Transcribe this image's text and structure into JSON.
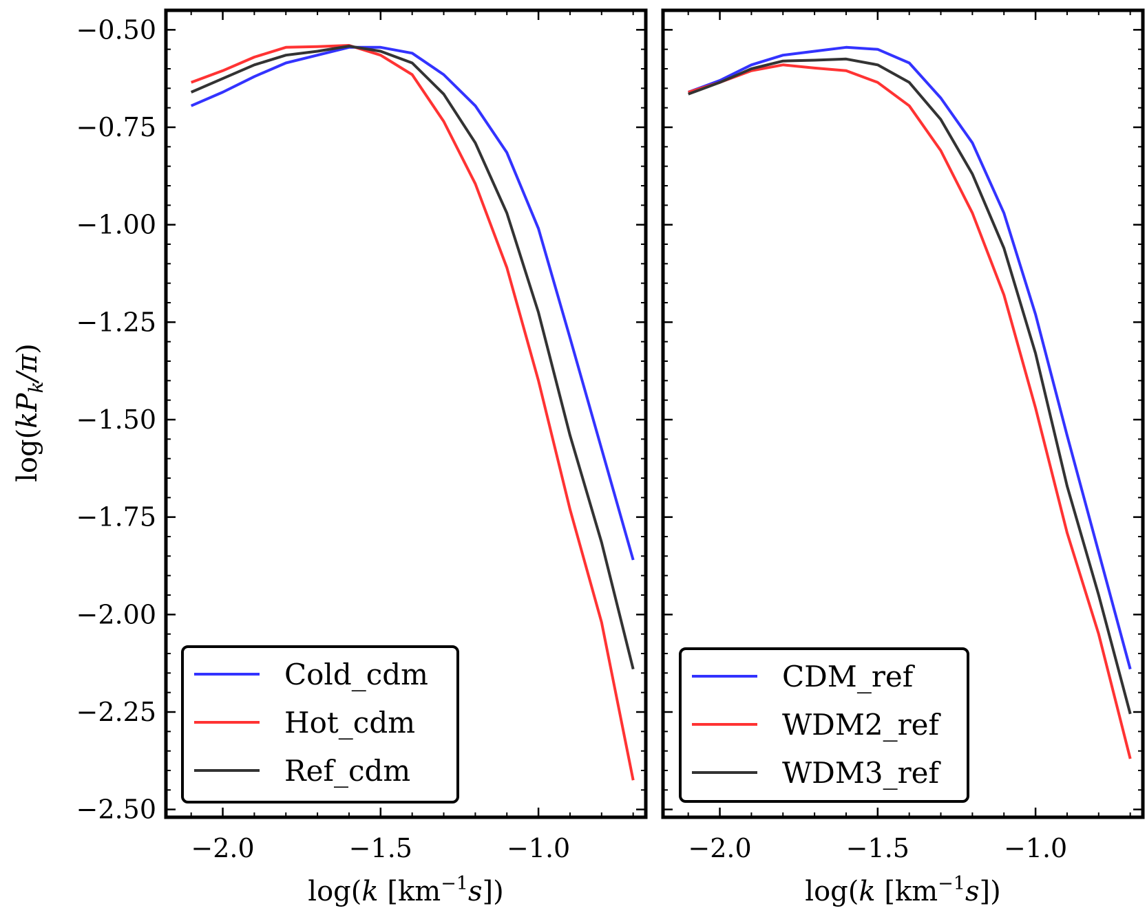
{
  "chart_data": [
    {
      "type": "line",
      "panel": "left",
      "xlabel_parts": [
        "log(",
        "k",
        " [km",
        "−1",
        "s",
        "])"
      ],
      "ylabel_parts": [
        "log(",
        "kP",
        "k",
        "/π",
        ")"
      ],
      "xlim": [
        -2.18,
        -0.66
      ],
      "ylim": [
        -2.52,
        -0.45
      ],
      "xticks": [
        -2.0,
        -1.5,
        -1.0
      ],
      "xtick_labels": [
        "−2.0",
        "−1.5",
        "−1.0"
      ],
      "yticks": [
        -0.5,
        -0.75,
        -1.0,
        -1.25,
        -1.5,
        -1.75,
        -2.0,
        -2.25,
        -2.5
      ],
      "ytick_labels": [
        "−0.50",
        "−0.75",
        "−1.00",
        "−1.25",
        "−1.50",
        "−1.75",
        "−2.00",
        "−2.25",
        "−2.50"
      ],
      "legend_position": "lower-left",
      "x": [
        -2.1,
        -2.0,
        -1.9,
        -1.8,
        -1.7,
        -1.6,
        -1.5,
        -1.4,
        -1.3,
        -1.2,
        -1.1,
        -1.0,
        -0.9,
        -0.8,
        -0.7
      ],
      "series": [
        {
          "name": "Cold_cdm",
          "color": "#3333ff",
          "values": [
            -0.695,
            -0.66,
            -0.62,
            -0.585,
            -0.565,
            -0.545,
            -0.545,
            -0.56,
            -0.615,
            -0.695,
            -0.815,
            -1.01,
            -1.29,
            -1.575,
            -1.86
          ]
        },
        {
          "name": "Hot_cdm",
          "color": "#ff3333",
          "values": [
            -0.635,
            -0.605,
            -0.57,
            -0.545,
            -0.543,
            -0.54,
            -0.565,
            -0.615,
            -0.735,
            -0.895,
            -1.11,
            -1.4,
            -1.73,
            -2.02,
            -2.425
          ]
        },
        {
          "name": "Ref_cdm",
          "color": "#333333",
          "values": [
            -0.66,
            -0.625,
            -0.59,
            -0.565,
            -0.555,
            -0.542,
            -0.555,
            -0.585,
            -0.665,
            -0.79,
            -0.97,
            -1.225,
            -1.54,
            -1.815,
            -2.14
          ]
        }
      ]
    },
    {
      "type": "line",
      "panel": "right",
      "xlabel_parts": [
        "log(",
        "k",
        " [km",
        "−1",
        "s",
        "])"
      ],
      "xlim": [
        -2.18,
        -0.66
      ],
      "ylim": [
        -2.52,
        -0.45
      ],
      "xticks": [
        -2.0,
        -1.5,
        -1.0
      ],
      "xtick_labels": [
        "−2.0",
        "−1.5",
        "−1.0"
      ],
      "yticks": [
        -0.5,
        -0.75,
        -1.0,
        -1.25,
        -1.5,
        -1.75,
        -2.0,
        -2.25,
        -2.5
      ],
      "legend_position": "lower-left",
      "x": [
        -2.1,
        -2.0,
        -1.9,
        -1.8,
        -1.7,
        -1.6,
        -1.5,
        -1.4,
        -1.3,
        -1.2,
        -1.1,
        -1.0,
        -0.9,
        -0.8,
        -0.7
      ],
      "series": [
        {
          "name": "CDM_ref",
          "color": "#3333ff",
          "values": [
            -0.66,
            -0.63,
            -0.59,
            -0.565,
            -0.555,
            -0.545,
            -0.55,
            -0.585,
            -0.675,
            -0.79,
            -0.97,
            -1.23,
            -1.54,
            -1.84,
            -2.14
          ]
        },
        {
          "name": "WDM2_ref",
          "color": "#ff3333",
          "values": [
            -0.66,
            -0.635,
            -0.605,
            -0.59,
            -0.598,
            -0.605,
            -0.635,
            -0.695,
            -0.81,
            -0.97,
            -1.18,
            -1.47,
            -1.79,
            -2.05,
            -2.37
          ]
        },
        {
          "name": "WDM3_ref",
          "color": "#333333",
          "values": [
            -0.665,
            -0.635,
            -0.6,
            -0.58,
            -0.578,
            -0.575,
            -0.59,
            -0.635,
            -0.73,
            -0.87,
            -1.06,
            -1.33,
            -1.67,
            -1.95,
            -2.255
          ]
        }
      ]
    }
  ]
}
